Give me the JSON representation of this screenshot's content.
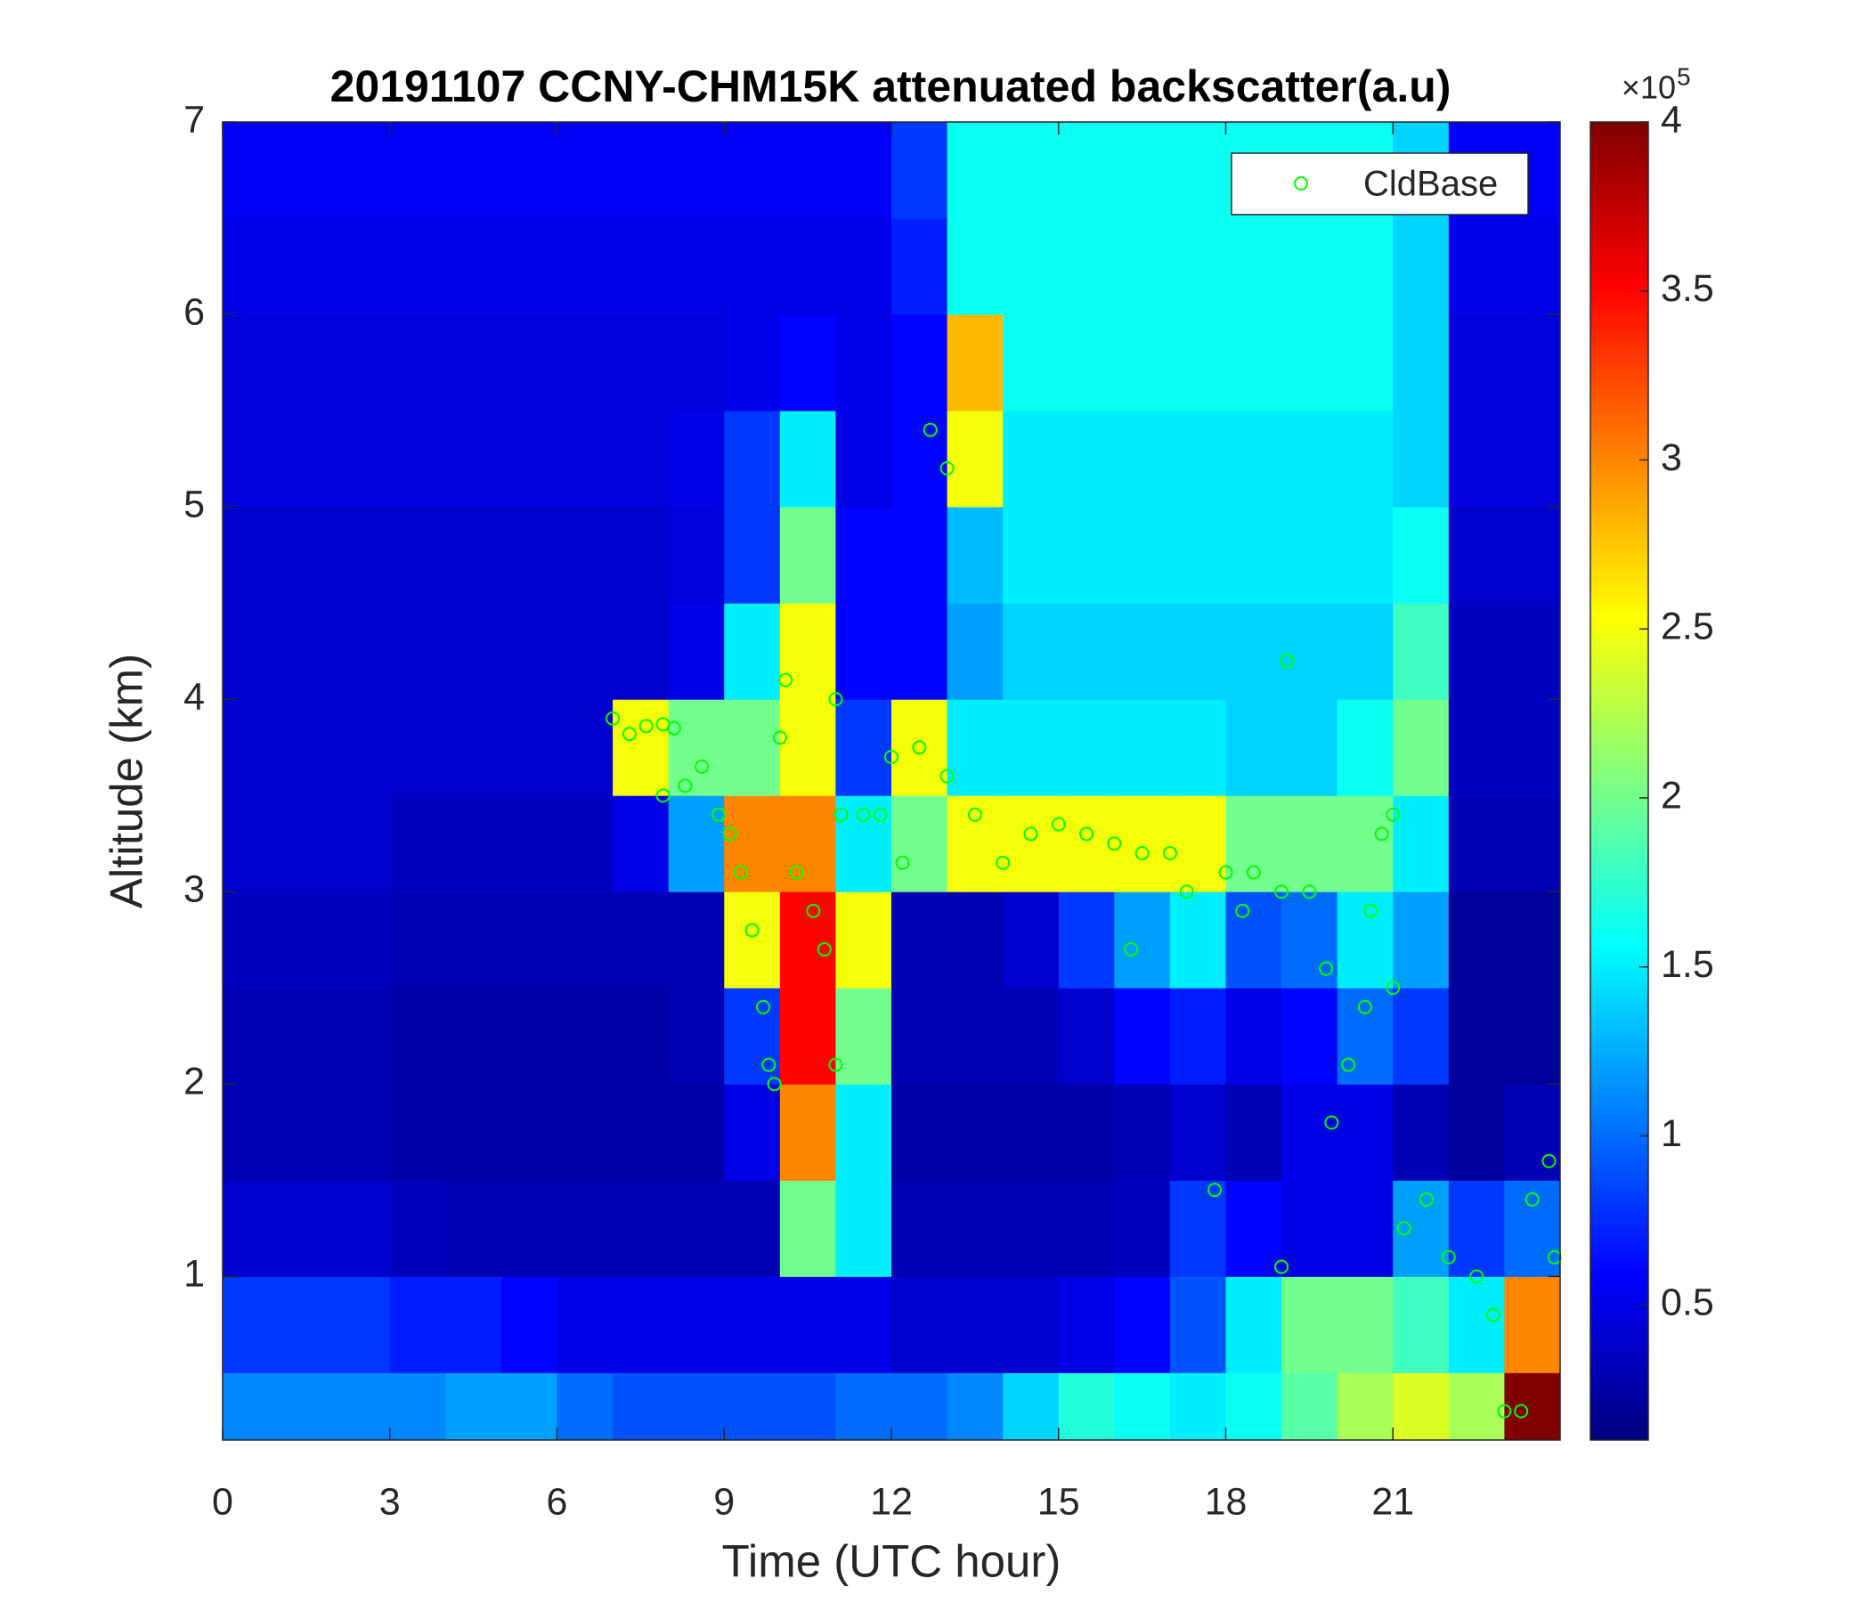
{
  "chart_data": {
    "type": "heatmap",
    "title": "20191107 CCNY-CHM15K attenuated backscatter(a.u)",
    "x_label": "Time (UTC hour)",
    "y_label": "Altitude (km)",
    "colormap": "jet",
    "xlim": [
      0,
      24
    ],
    "ylim": [
      0.15,
      7
    ],
    "xticks": [
      0,
      3,
      6,
      9,
      12,
      15,
      18,
      21
    ],
    "yticks": [
      1,
      2,
      3,
      4,
      5,
      6,
      7
    ],
    "clim": [
      0.1,
      4
    ],
    "cticks": [
      0.5,
      1,
      1.5,
      2,
      2.5,
      3,
      3.5,
      4
    ],
    "colorbar_multiplier": "×10",
    "colorbar_exponent": "5",
    "legend": "upper right",
    "x_bins": [
      0,
      1,
      2,
      3,
      4,
      5,
      6,
      7,
      8,
      9,
      10,
      11,
      12,
      13,
      14,
      15,
      16,
      17,
      18,
      19,
      20,
      21,
      22,
      23,
      24
    ],
    "y_bins": [
      0.15,
      0.5,
      1,
      1.5,
      2,
      2.5,
      3,
      3.5,
      4,
      4.5,
      5,
      5.5,
      6,
      6.5,
      7
    ],
    "values": [
      [
        1.1,
        1.1,
        1.1,
        1.1,
        1.2,
        1.2,
        1.0,
        0.9,
        0.9,
        0.9,
        0.9,
        1.0,
        1.0,
        1.1,
        1.4,
        1.7,
        1.6,
        1.5,
        1.6,
        1.9,
        2.2,
        2.4,
        2.2,
        4.0
      ],
      [
        0.8,
        0.8,
        0.8,
        0.7,
        0.7,
        0.6,
        0.5,
        0.5,
        0.5,
        0.5,
        0.5,
        0.5,
        0.4,
        0.4,
        0.4,
        0.5,
        0.6,
        0.9,
        1.5,
        2.0,
        2.0,
        1.8,
        1.5,
        3.0
      ],
      [
        0.4,
        0.4,
        0.4,
        0.35,
        0.3,
        0.3,
        0.3,
        0.3,
        0.3,
        0.3,
        2.0,
        1.5,
        0.3,
        0.3,
        0.3,
        0.3,
        0.35,
        0.8,
        0.6,
        0.5,
        0.5,
        1.2,
        0.8,
        1.0
      ],
      [
        0.3,
        0.3,
        0.3,
        0.25,
        0.25,
        0.25,
        0.25,
        0.25,
        0.25,
        0.5,
        3.0,
        1.5,
        0.25,
        0.25,
        0.25,
        0.25,
        0.3,
        0.4,
        0.3,
        0.5,
        0.5,
        0.3,
        0.2,
        0.3
      ],
      [
        0.3,
        0.3,
        0.3,
        0.25,
        0.25,
        0.25,
        0.25,
        0.25,
        0.3,
        0.8,
        3.5,
        2.0,
        0.3,
        0.3,
        0.3,
        0.4,
        0.6,
        0.7,
        0.5,
        0.6,
        1.0,
        0.8,
        0.2,
        0.2
      ],
      [
        0.35,
        0.35,
        0.35,
        0.3,
        0.3,
        0.3,
        0.3,
        0.3,
        0.3,
        2.5,
        3.5,
        2.5,
        0.3,
        0.3,
        0.4,
        0.8,
        1.2,
        1.5,
        0.9,
        1.0,
        1.5,
        1.2,
        0.2,
        0.2
      ],
      [
        0.4,
        0.4,
        0.4,
        0.35,
        0.35,
        0.35,
        0.35,
        0.5,
        1.2,
        3.0,
        3.0,
        1.5,
        2.0,
        2.5,
        2.5,
        2.5,
        2.5,
        2.5,
        2.0,
        2.0,
        2.0,
        1.5,
        0.3,
        0.3
      ],
      [
        0.4,
        0.4,
        0.4,
        0.4,
        0.4,
        0.4,
        0.4,
        2.5,
        2.0,
        2.0,
        2.5,
        0.8,
        2.5,
        1.5,
        1.5,
        1.5,
        1.5,
        1.5,
        1.4,
        1.4,
        1.6,
        2.0,
        0.35,
        0.35
      ],
      [
        0.4,
        0.4,
        0.4,
        0.4,
        0.4,
        0.4,
        0.4,
        0.4,
        0.5,
        1.5,
        2.5,
        0.6,
        0.6,
        1.2,
        1.4,
        1.4,
        1.4,
        1.4,
        1.4,
        1.4,
        1.4,
        1.8,
        0.35,
        0.35
      ],
      [
        0.4,
        0.4,
        0.4,
        0.4,
        0.4,
        0.4,
        0.4,
        0.4,
        0.45,
        0.8,
        2.0,
        0.6,
        0.6,
        1.3,
        1.5,
        1.5,
        1.5,
        1.5,
        1.5,
        1.5,
        1.5,
        1.6,
        0.4,
        0.4
      ],
      [
        0.45,
        0.45,
        0.45,
        0.45,
        0.45,
        0.45,
        0.45,
        0.45,
        0.5,
        0.8,
        1.5,
        0.5,
        0.6,
        2.5,
        1.5,
        1.5,
        1.5,
        1.5,
        1.5,
        1.5,
        1.5,
        1.4,
        0.45,
        0.45
      ],
      [
        0.45,
        0.45,
        0.45,
        0.45,
        0.45,
        0.45,
        0.45,
        0.45,
        0.45,
        0.5,
        0.6,
        0.5,
        0.6,
        2.8,
        1.6,
        1.6,
        1.6,
        1.6,
        1.6,
        1.6,
        1.6,
        1.4,
        0.45,
        0.45
      ],
      [
        0.5,
        0.5,
        0.5,
        0.5,
        0.5,
        0.5,
        0.5,
        0.5,
        0.5,
        0.5,
        0.5,
        0.5,
        0.7,
        1.6,
        1.6,
        1.6,
        1.6,
        1.6,
        1.6,
        1.6,
        1.6,
        1.4,
        0.5,
        0.5
      ],
      [
        0.55,
        0.55,
        0.55,
        0.55,
        0.55,
        0.55,
        0.55,
        0.55,
        0.55,
        0.55,
        0.55,
        0.55,
        0.8,
        1.6,
        1.6,
        1.6,
        1.6,
        1.6,
        1.6,
        1.6,
        1.6,
        1.4,
        0.55,
        0.55
      ]
    ],
    "series": [
      {
        "name": "CldBase",
        "type": "scatter",
        "color": "#00ff00",
        "x": [
          7.0,
          7.3,
          7.6,
          7.9,
          8.1,
          7.9,
          8.3,
          8.6,
          8.9,
          9.1,
          9.3,
          9.5,
          9.7,
          9.8,
          9.9,
          10.0,
          10.1,
          10.3,
          10.6,
          10.8,
          11.0,
          11.0,
          11.1,
          11.5,
          11.8,
          12.0,
          12.2,
          12.5,
          12.7,
          13.0,
          13.0,
          13.5,
          14.0,
          14.5,
          15.0,
          15.5,
          16.0,
          16.3,
          16.5,
          17.0,
          17.3,
          17.8,
          18.0,
          18.3,
          18.5,
          19.0,
          19.0,
          19.1,
          19.5,
          19.8,
          19.9,
          20.2,
          20.5,
          20.6,
          20.8,
          21.0,
          21.0,
          21.2,
          21.6,
          22.0,
          22.5,
          22.8,
          23.0,
          23.3,
          23.5,
          23.8,
          23.9
        ],
        "values": [
          3.9,
          3.82,
          3.86,
          3.87,
          3.85,
          3.5,
          3.55,
          3.65,
          3.4,
          3.3,
          3.1,
          2.8,
          2.4,
          2.1,
          2.0,
          3.8,
          4.1,
          3.1,
          2.9,
          2.7,
          4.0,
          2.1,
          3.4,
          3.4,
          3.4,
          3.7,
          3.15,
          3.75,
          5.4,
          5.2,
          3.6,
          3.4,
          3.15,
          3.3,
          3.35,
          3.3,
          3.25,
          2.7,
          3.2,
          3.2,
          3.0,
          1.45,
          3.1,
          2.9,
          3.1,
          1.05,
          3.0,
          4.2,
          3.0,
          2.6,
          1.8,
          2.1,
          2.4,
          2.9,
          3.3,
          2.5,
          3.4,
          1.25,
          1.4,
          1.1,
          1.0,
          0.8,
          0.3,
          0.3,
          1.4,
          1.6,
          1.1
        ]
      }
    ]
  }
}
